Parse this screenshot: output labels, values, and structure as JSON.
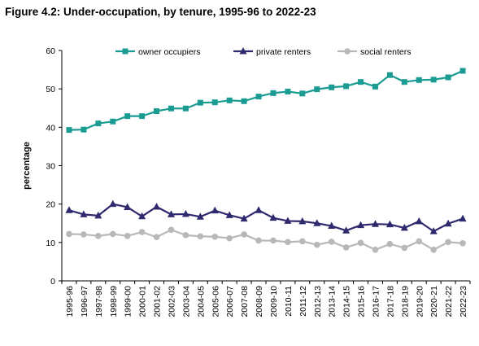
{
  "figure": {
    "title": "Figure 4.2: Under-occupation, by tenure, 1995-96 to 2022-23"
  },
  "chart_data": {
    "type": "line",
    "title": "Figure 4.2: Under-occupation, by tenure, 1995-96 to 2022-23",
    "xlabel": "",
    "ylabel": "percentage",
    "ylim": [
      0,
      60
    ],
    "yticks": [
      0,
      10,
      20,
      30,
      40,
      50,
      60
    ],
    "grid": false,
    "legend": "top",
    "categories": [
      "1995-96",
      "1996-97",
      "1997-98",
      "1998-99",
      "1999-00",
      "2000-01",
      "2001-02",
      "2002-03",
      "2003-04",
      "2004-05",
      "2005-06",
      "2006-07",
      "2007-08",
      "2008-09",
      "2009-10",
      "2010-11",
      "2011-12",
      "2012-13",
      "2013-14",
      "2014-15",
      "2015-16",
      "2016-17",
      "2017-18",
      "2018-19",
      "2019-20",
      "2020-21",
      "2021-22",
      "2022-23"
    ],
    "series": [
      {
        "name": "owner occupiers",
        "color": "#1a9c93",
        "marker": "square",
        "values": [
          39.3,
          39.4,
          41.0,
          41.5,
          42.9,
          42.9,
          44.2,
          44.9,
          44.9,
          46.4,
          46.5,
          47.0,
          46.8,
          48.0,
          48.9,
          49.3,
          48.8,
          49.9,
          50.4,
          50.7,
          51.8,
          50.6,
          53.6,
          51.8,
          52.3,
          52.4,
          53.0,
          54.7
        ]
      },
      {
        "name": "private renters",
        "color": "#2f2a6e",
        "marker": "triangle",
        "values": [
          18.4,
          17.3,
          17.0,
          20.0,
          19.2,
          16.8,
          19.3,
          17.3,
          17.4,
          16.7,
          18.3,
          17.1,
          16.2,
          18.4,
          16.4,
          15.6,
          15.5,
          15.0,
          14.3,
          13.1,
          14.5,
          14.8,
          14.7,
          13.8,
          15.5,
          12.9,
          14.9,
          16.2
        ]
      },
      {
        "name": "social renters",
        "color": "#b8b8b8",
        "marker": "circle",
        "values": [
          12.2,
          12.1,
          11.7,
          12.2,
          11.7,
          12.7,
          11.4,
          13.3,
          11.9,
          11.6,
          11.5,
          11.1,
          12.1,
          10.5,
          10.5,
          10.1,
          10.3,
          9.4,
          10.2,
          8.7,
          9.9,
          8.1,
          9.6,
          8.6,
          10.3,
          8.1,
          10.1,
          9.8
        ]
      }
    ]
  }
}
